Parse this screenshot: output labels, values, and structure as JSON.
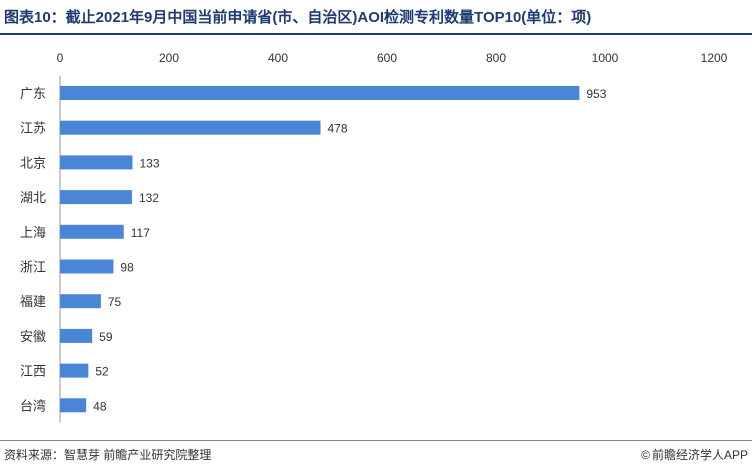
{
  "header": {
    "title": "图表10：截止2021年9月中国当前申请省(市、自治区)AOI检测专利数量TOP10(单位：项)"
  },
  "footer": {
    "source": "资料来源：智慧芽 前瞻产业研究院整理",
    "credit": "前瞻经济学人APP",
    "credit_icon": "copyright-logo-icon"
  },
  "chart_data": {
    "type": "bar",
    "orientation": "horizontal",
    "title": "图表10：截止2021年9月中国当前申请省(市、自治区)AOI检测专利数量TOP10(单位：项)",
    "categories": [
      "广东",
      "江苏",
      "北京",
      "湖北",
      "上海",
      "浙江",
      "福建",
      "安徽",
      "江西",
      "台湾"
    ],
    "values": [
      953,
      478,
      133,
      132,
      117,
      98,
      75,
      59,
      52,
      48
    ],
    "xlim": [
      0,
      1200
    ],
    "x_ticks": [
      0,
      200,
      400,
      600,
      800,
      1000,
      1200
    ],
    "x_axis_position": "top",
    "grid": false,
    "legend": "none",
    "bar_color": "#4a86d8",
    "xlabel": "",
    "ylabel": ""
  }
}
